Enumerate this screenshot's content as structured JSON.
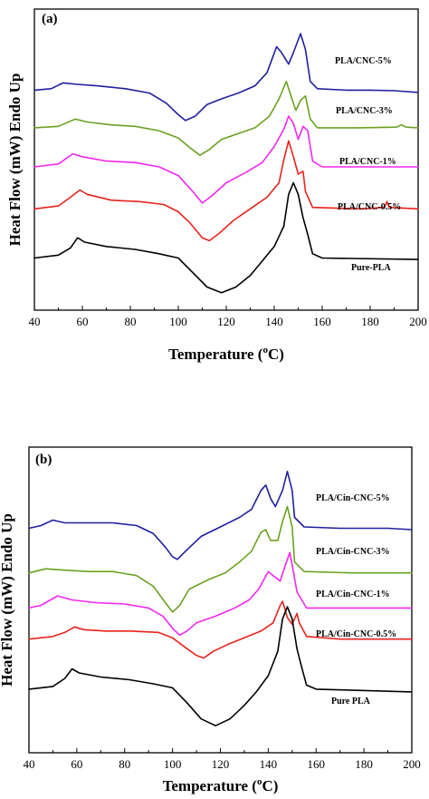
{
  "chart_data": [
    {
      "type": "line",
      "panel_label": "(a)",
      "xlabel_main": "Temperature (",
      "xlabel_sup": "o",
      "xlabel_end": "C)",
      "ylabel": "Heat Flow (mW) Endo Up",
      "xlim": [
        40,
        200
      ],
      "xticks": [
        "40",
        "60",
        "80",
        "100",
        "120",
        "140",
        "160",
        "180",
        "200"
      ],
      "yticks_shown": false,
      "series": [
        {
          "name": "PLA/CNC-5%",
          "color": "#1f1f9e",
          "baseline": 5.2,
          "points": [
            [
              40,
              0
            ],
            [
              47,
              0.05
            ],
            [
              52,
              0.25
            ],
            [
              58,
              0.2
            ],
            [
              66,
              0.15
            ],
            [
              78,
              0.05
            ],
            [
              88,
              -0.1
            ],
            [
              95,
              -0.45
            ],
            [
              100,
              -0.85
            ],
            [
              103,
              -1.05
            ],
            [
              107,
              -0.9
            ],
            [
              112,
              -0.5
            ],
            [
              118,
              -0.3
            ],
            [
              125,
              -0.1
            ],
            [
              132,
              0.15
            ],
            [
              137,
              0.6
            ],
            [
              141,
              1.5
            ],
            [
              143,
              1.3
            ],
            [
              146,
              0.9
            ],
            [
              148,
              1.3
            ],
            [
              151,
              1.95
            ],
            [
              153,
              1.4
            ],
            [
              155,
              0.3
            ],
            [
              158,
              0.05
            ],
            [
              170,
              0.0
            ],
            [
              180,
              0.0
            ],
            [
              190,
              -0.02
            ],
            [
              200,
              -0.08
            ]
          ]
        },
        {
          "name": "PLA/CNC-3%",
          "color": "#6aa121",
          "baseline": 3.9,
          "points": [
            [
              40,
              0
            ],
            [
              50,
              0.05
            ],
            [
              57,
              0.3
            ],
            [
              62,
              0.2
            ],
            [
              72,
              0.1
            ],
            [
              82,
              0.05
            ],
            [
              92,
              -0.1
            ],
            [
              100,
              -0.35
            ],
            [
              105,
              -0.7
            ],
            [
              109,
              -0.95
            ],
            [
              113,
              -0.75
            ],
            [
              118,
              -0.4
            ],
            [
              125,
              -0.2
            ],
            [
              132,
              0
            ],
            [
              138,
              0.4
            ],
            [
              142,
              1.0
            ],
            [
              145,
              1.6
            ],
            [
              147,
              1.1
            ],
            [
              149,
              0.6
            ],
            [
              151,
              0.95
            ],
            [
              153,
              1.1
            ],
            [
              155,
              0.3
            ],
            [
              158,
              0.0
            ],
            [
              175,
              0.0
            ],
            [
              191,
              0.02
            ],
            [
              193,
              0.1
            ],
            [
              195,
              0.02
            ],
            [
              200,
              0.0
            ]
          ]
        },
        {
          "name": "PLA/CNC-1%",
          "color": "#f227f0",
          "baseline": 2.55,
          "points": [
            [
              40,
              0
            ],
            [
              50,
              0.1
            ],
            [
              56,
              0.45
            ],
            [
              60,
              0.35
            ],
            [
              70,
              0.2
            ],
            [
              82,
              0.15
            ],
            [
              92,
              0.0
            ],
            [
              100,
              -0.3
            ],
            [
              106,
              -0.85
            ],
            [
              110,
              -1.25
            ],
            [
              114,
              -1.0
            ],
            [
              120,
              -0.55
            ],
            [
              128,
              -0.2
            ],
            [
              135,
              0.15
            ],
            [
              140,
              0.7
            ],
            [
              144,
              1.3
            ],
            [
              146,
              1.75
            ],
            [
              148,
              1.5
            ],
            [
              150,
              0.95
            ],
            [
              152,
              1.4
            ],
            [
              154,
              1.25
            ],
            [
              156,
              0.2
            ],
            [
              160,
              0.0
            ],
            [
              200,
              0.0
            ]
          ]
        },
        {
          "name": "PLA/CNC-0.5%",
          "color": "#e8231c",
          "baseline": 1.1,
          "points": [
            [
              40,
              0
            ],
            [
              50,
              0.1
            ],
            [
              55,
              0.4
            ],
            [
              59,
              0.65
            ],
            [
              62,
              0.5
            ],
            [
              72,
              0.3
            ],
            [
              84,
              0.25
            ],
            [
              94,
              0.15
            ],
            [
              100,
              -0.1
            ],
            [
              105,
              -0.5
            ],
            [
              110,
              -1.0
            ],
            [
              113,
              -1.1
            ],
            [
              117,
              -0.85
            ],
            [
              123,
              -0.4
            ],
            [
              130,
              0.0
            ],
            [
              137,
              0.4
            ],
            [
              142,
              0.9
            ],
            [
              144,
              1.7
            ],
            [
              146,
              2.35
            ],
            [
              148,
              1.8
            ],
            [
              150,
              1.2
            ],
            [
              152,
              1.3
            ],
            [
              153,
              0.6
            ],
            [
              156,
              0.05
            ],
            [
              176,
              0.0
            ],
            [
              186,
              0.05
            ],
            [
              187,
              0.25
            ],
            [
              188,
              0.05
            ],
            [
              200,
              0.0
            ]
          ]
        },
        {
          "name": "Pure-PLA",
          "color": "#000000",
          "baseline": -0.6,
          "points": [
            [
              40,
              0
            ],
            [
              50,
              0.1
            ],
            [
              55,
              0.35
            ],
            [
              58,
              0.7
            ],
            [
              61,
              0.55
            ],
            [
              70,
              0.4
            ],
            [
              82,
              0.3
            ],
            [
              92,
              0.15
            ],
            [
              100,
              0.0
            ],
            [
              106,
              -0.5
            ],
            [
              112,
              -1.0
            ],
            [
              118,
              -1.2
            ],
            [
              124,
              -1.0
            ],
            [
              130,
              -0.6
            ],
            [
              135,
              -0.1
            ],
            [
              140,
              0.4
            ],
            [
              144,
              1.1
            ],
            [
              146,
              2.2
            ],
            [
              148,
              2.6
            ],
            [
              150,
              2.2
            ],
            [
              152,
              1.4
            ],
            [
              154,
              0.8
            ],
            [
              156,
              0.15
            ],
            [
              160,
              0.0
            ],
            [
              200,
              -0.05
            ]
          ]
        }
      ]
    },
    {
      "type": "line",
      "panel_label": "(b)",
      "xlabel_main": "Temperature (",
      "xlabel_sup": "o",
      "xlabel_end": "C)",
      "ylabel": "Heat Flow (mW) Endo Up",
      "xlim": [
        40,
        200
      ],
      "xticks": [
        "40",
        "60",
        "80",
        "100",
        "120",
        "140",
        "160",
        "180",
        "200"
      ],
      "yticks_shown": false,
      "series": [
        {
          "name": "PLA/Cin-CNC-5%",
          "color": "#1f1f9e",
          "baseline": 4.9,
          "points": [
            [
              40,
              0
            ],
            [
              45,
              0.1
            ],
            [
              50,
              0.3
            ],
            [
              55,
              0.2
            ],
            [
              65,
              0.2
            ],
            [
              75,
              0.2
            ],
            [
              85,
              0.1
            ],
            [
              92,
              -0.2
            ],
            [
              97,
              -0.7
            ],
            [
              100,
              -1.05
            ],
            [
              102,
              -1.15
            ],
            [
              106,
              -0.8
            ],
            [
              112,
              -0.3
            ],
            [
              120,
              0.05
            ],
            [
              128,
              0.4
            ],
            [
              133,
              0.7
            ],
            [
              137,
              1.4
            ],
            [
              139,
              1.6
            ],
            [
              141,
              1.1
            ],
            [
              143,
              0.8
            ],
            [
              146,
              1.4
            ],
            [
              148,
              2.1
            ],
            [
              150,
              1.4
            ],
            [
              151,
              0.4
            ],
            [
              155,
              0.05
            ],
            [
              170,
              0.0
            ],
            [
              190,
              0.0
            ],
            [
              200,
              -0.05
            ]
          ]
        },
        {
          "name": "PLA/Cin-CNC-3%",
          "color": "#6aa121",
          "baseline": 3.25,
          "points": [
            [
              40,
              0
            ],
            [
              47,
              0.15
            ],
            [
              55,
              0.1
            ],
            [
              65,
              0.05
            ],
            [
              75,
              0.05
            ],
            [
              85,
              -0.1
            ],
            [
              92,
              -0.5
            ],
            [
              97,
              -1.1
            ],
            [
              100,
              -1.45
            ],
            [
              103,
              -1.2
            ],
            [
              107,
              -0.6
            ],
            [
              115,
              -0.25
            ],
            [
              122,
              0.0
            ],
            [
              128,
              0.4
            ],
            [
              133,
              0.8
            ],
            [
              137,
              1.5
            ],
            [
              139,
              1.6
            ],
            [
              141,
              1.2
            ],
            [
              144,
              1.2
            ],
            [
              146,
              1.9
            ],
            [
              148,
              2.45
            ],
            [
              150,
              1.7
            ],
            [
              151,
              0.4
            ],
            [
              155,
              0.05
            ],
            [
              175,
              0.0
            ],
            [
              200,
              0.0
            ]
          ]
        },
        {
          "name": "PLA/Cin-CNC-1%",
          "color": "#f227f0",
          "baseline": 1.95,
          "points": [
            [
              40,
              0
            ],
            [
              45,
              0.1
            ],
            [
              52,
              0.45
            ],
            [
              58,
              0.3
            ],
            [
              68,
              0.2
            ],
            [
              80,
              0.15
            ],
            [
              90,
              0.0
            ],
            [
              96,
              -0.3
            ],
            [
              100,
              -0.75
            ],
            [
              103,
              -1.0
            ],
            [
              106,
              -0.85
            ],
            [
              110,
              -0.55
            ],
            [
              118,
              -0.3
            ],
            [
              126,
              0.0
            ],
            [
              132,
              0.3
            ],
            [
              136,
              0.7
            ],
            [
              140,
              1.35
            ],
            [
              142,
              1.2
            ],
            [
              145,
              1.0
            ],
            [
              147,
              1.55
            ],
            [
              149,
              2.05
            ],
            [
              150,
              1.6
            ],
            [
              152,
              0.6
            ],
            [
              156,
              0.0
            ],
            [
              200,
              0.0
            ]
          ]
        },
        {
          "name": "PLA/Cin-CNC-0.5%",
          "color": "#e8231c",
          "baseline": 0.8,
          "points": [
            [
              40,
              0
            ],
            [
              50,
              0.1
            ],
            [
              55,
              0.25
            ],
            [
              59,
              0.45
            ],
            [
              63,
              0.35
            ],
            [
              72,
              0.3
            ],
            [
              82,
              0.3
            ],
            [
              94,
              0.25
            ],
            [
              100,
              0.05
            ],
            [
              106,
              -0.35
            ],
            [
              110,
              -0.6
            ],
            [
              113,
              -0.7
            ],
            [
              117,
              -0.45
            ],
            [
              123,
              -0.2
            ],
            [
              130,
              0.05
            ],
            [
              137,
              0.3
            ],
            [
              142,
              0.6
            ],
            [
              145,
              1.25
            ],
            [
              146,
              1.4
            ],
            [
              148,
              0.8
            ],
            [
              150,
              0.55
            ],
            [
              152,
              0.95
            ],
            [
              153,
              0.6
            ],
            [
              156,
              0.1
            ],
            [
              170,
              0.0
            ],
            [
              200,
              0.0
            ]
          ]
        },
        {
          "name": "Pure PLA",
          "color": "#000000",
          "baseline": -1.05,
          "points": [
            [
              40,
              0
            ],
            [
              50,
              0.1
            ],
            [
              55,
              0.4
            ],
            [
              58,
              0.75
            ],
            [
              61,
              0.6
            ],
            [
              70,
              0.45
            ],
            [
              82,
              0.35
            ],
            [
              92,
              0.2
            ],
            [
              100,
              0.05
            ],
            [
              106,
              -0.5
            ],
            [
              112,
              -1.1
            ],
            [
              118,
              -1.35
            ],
            [
              124,
              -1.1
            ],
            [
              130,
              -0.6
            ],
            [
              135,
              -0.1
            ],
            [
              140,
              0.5
            ],
            [
              144,
              1.4
            ],
            [
              146,
              2.6
            ],
            [
              148,
              3.05
            ],
            [
              150,
              2.6
            ],
            [
              152,
              1.5
            ],
            [
              154,
              0.8
            ],
            [
              156,
              0.15
            ],
            [
              160,
              0.0
            ],
            [
              200,
              -0.1
            ]
          ]
        }
      ]
    }
  ]
}
